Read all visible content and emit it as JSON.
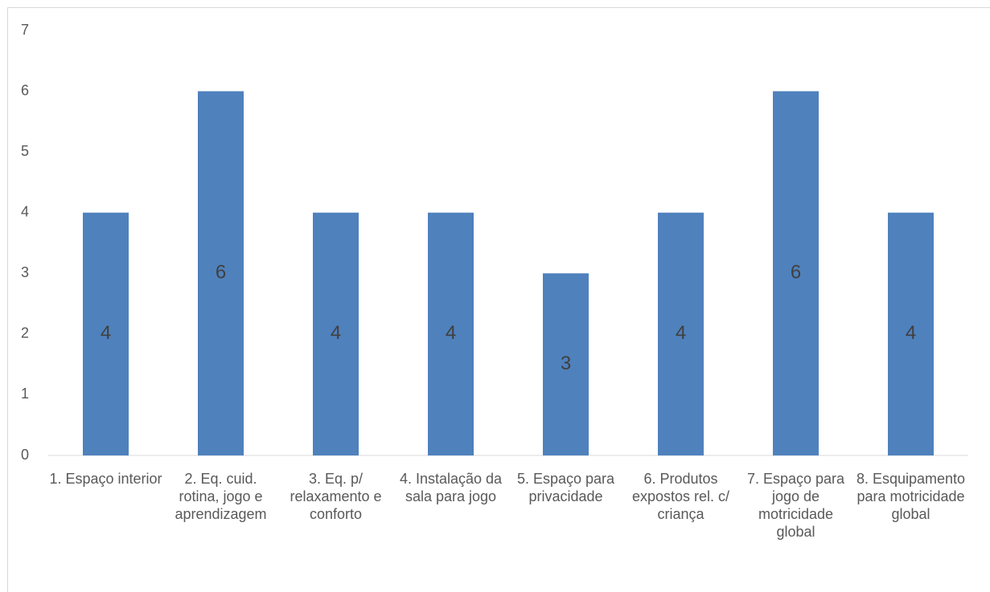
{
  "chart_data": {
    "type": "bar",
    "categories": [
      "1. Espaço interior",
      "2. Eq. cuid. rotina, jogo e aprendizagem",
      "3. Eq. p/ relaxamento e conforto",
      "4. Instalação da sala para jogo",
      "5. Espaço para privacidade",
      "6. Produtos expostos rel. c/ criança",
      "7. Espaço para jogo de motricidade global",
      "8. Esquipamento para motricidade global"
    ],
    "values": [
      4,
      6,
      4,
      4,
      3,
      4,
      6,
      4
    ],
    "color": "#4f81bd",
    "ylim": [
      0,
      7
    ],
    "yticks": [
      0,
      1,
      2,
      3,
      4,
      5,
      6,
      7
    ],
    "grid": false
  }
}
